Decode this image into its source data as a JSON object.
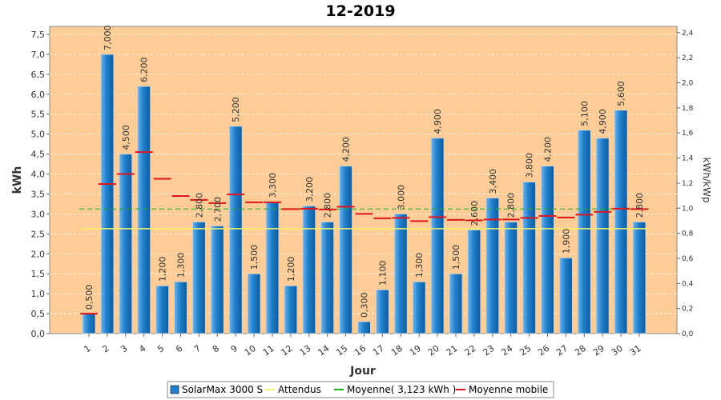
{
  "chart_data": {
    "type": "bar",
    "title": "12-2019",
    "xlabel": "Jour",
    "ylabel": "kWh",
    "ylabel_right": "kWh/kWp",
    "ylim": [
      0,
      7.7
    ],
    "ylim_right": [
      0,
      2.45
    ],
    "yticks": [
      "0,0",
      "0,5",
      "1,0",
      "1,5",
      "2,0",
      "2,5",
      "3,0",
      "3,5",
      "4,0",
      "4,5",
      "5,0",
      "5,5",
      "6,0",
      "6,5",
      "7,0",
      "7,5"
    ],
    "yticks_right": [
      "0,0",
      "0,2",
      "0,4",
      "0,6",
      "0,8",
      "1,0",
      "1,2",
      "1,4",
      "1,6",
      "1,8",
      "2,0",
      "2,2",
      "2,4"
    ],
    "categories": [
      "1",
      "2",
      "3",
      "4",
      "5",
      "6",
      "7",
      "8",
      "9",
      "10",
      "11",
      "12",
      "13",
      "14",
      "15",
      "16",
      "17",
      "18",
      "19",
      "20",
      "21",
      "22",
      "23",
      "24",
      "25",
      "26",
      "27",
      "28",
      "29",
      "30",
      "31"
    ],
    "series": [
      {
        "name": "SolarMax 3000 S",
        "type": "bar",
        "color": "#1a72b8",
        "values": [
          0.5,
          7.0,
          4.5,
          6.2,
          1.2,
          1.3,
          2.8,
          2.7,
          5.2,
          1.5,
          3.3,
          1.2,
          3.2,
          2.8,
          4.2,
          0.3,
          1.1,
          3.0,
          1.3,
          4.9,
          1.5,
          2.6,
          3.4,
          2.8,
          3.8,
          4.2,
          1.9,
          5.1,
          4.9,
          5.6,
          2.8
        ],
        "labels": [
          "0,500",
          "7,000",
          "4,500",
          "6,200",
          "1,200",
          "1,300",
          "2,800",
          "2,700",
          "5,200",
          "1,500",
          "3,300",
          "1,200",
          "3,200",
          "2,800",
          "4,200",
          "0,300",
          "1,100",
          "3,000",
          "1,300",
          "4,900",
          "1,500",
          "2,600",
          "3,400",
          "2,800",
          "3,800",
          "4,200",
          "1,900",
          "5,100",
          "4,900",
          "5,600",
          "2,800"
        ]
      },
      {
        "name": "Attendus",
        "type": "line",
        "color": "#f5f06a",
        "value": 2.63
      },
      {
        "name": "Moyenne( 3,123 kWh )",
        "type": "line",
        "color": "#19b219",
        "value": 3.123
      },
      {
        "name": "Moyenne mobile",
        "type": "step",
        "color": "#e0141e",
        "values": [
          0.5,
          3.75,
          4.0,
          4.55,
          3.88,
          3.45,
          3.35,
          3.27,
          3.49,
          3.29,
          3.29,
          3.12,
          3.13,
          3.11,
          3.18,
          3.0,
          2.89,
          2.9,
          2.82,
          2.92,
          2.85,
          2.84,
          2.86,
          2.86,
          2.9,
          2.95,
          2.91,
          2.98,
          3.05,
          3.13,
          3.12
        ]
      }
    ],
    "grid": true,
    "legend_position": "bottom"
  }
}
